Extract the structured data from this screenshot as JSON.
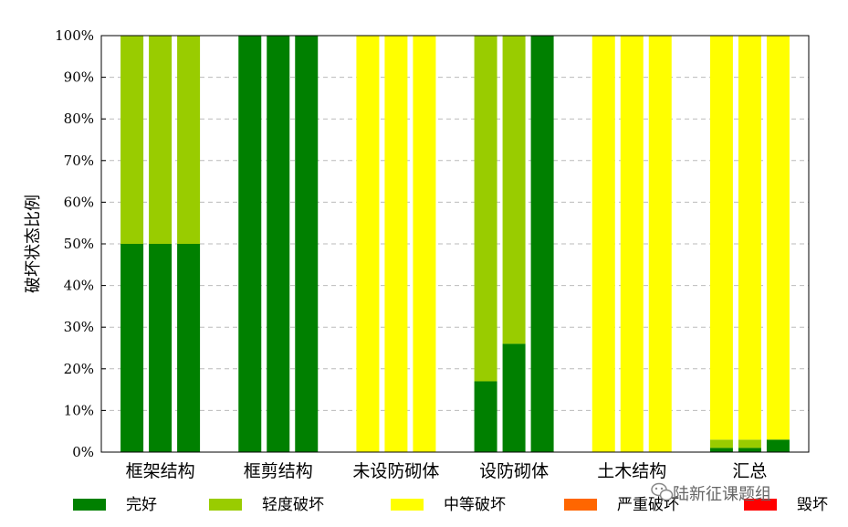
{
  "chart_data": {
    "type": "bar",
    "stacked": true,
    "ylabel": "破坏状态比例",
    "ylim": [
      0,
      100
    ],
    "yticks": [
      "0%",
      "10%",
      "20%",
      "30%",
      "40%",
      "50%",
      "60%",
      "70%",
      "80%",
      "90%",
      "100%"
    ],
    "grid": true,
    "legend_position": "bottom",
    "categories": [
      "框架结构",
      "框剪结构",
      "未设防砌体",
      "设防砌体",
      "土木结构",
      "汇总"
    ],
    "bars_per_category": 3,
    "series": [
      {
        "name": "完好",
        "color": "#008000",
        "values": [
          [
            50,
            50,
            50
          ],
          [
            100,
            100,
            100
          ],
          [
            0,
            0,
            0
          ],
          [
            17,
            26,
            100
          ],
          [
            0,
            0,
            0
          ],
          [
            1,
            1,
            3
          ]
        ]
      },
      {
        "name": "轻度破坏",
        "color": "#99cc00",
        "values": [
          [
            50,
            50,
            50
          ],
          [
            0,
            0,
            0
          ],
          [
            0,
            0,
            0
          ],
          [
            83,
            74,
            0
          ],
          [
            0,
            0,
            0
          ],
          [
            2,
            2,
            0
          ]
        ]
      },
      {
        "name": "中等破坏",
        "color": "#ffff00",
        "values": [
          [
            0,
            0,
            0
          ],
          [
            0,
            0,
            0
          ],
          [
            100,
            100,
            100
          ],
          [
            0,
            0,
            0
          ],
          [
            100,
            100,
            100
          ],
          [
            97,
            97,
            97
          ]
        ]
      },
      {
        "name": "严重破坏",
        "color": "#ff6600",
        "values": [
          [
            0,
            0,
            0
          ],
          [
            0,
            0,
            0
          ],
          [
            0,
            0,
            0
          ],
          [
            0,
            0,
            0
          ],
          [
            0,
            0,
            0
          ],
          [
            0,
            0,
            0
          ]
        ]
      },
      {
        "name": "毁坏",
        "color": "#ff0000",
        "values": [
          [
            0,
            0,
            0
          ],
          [
            0,
            0,
            0
          ],
          [
            0,
            0,
            0
          ],
          [
            0,
            0,
            0
          ],
          [
            0,
            0,
            0
          ],
          [
            0,
            0,
            0
          ]
        ]
      }
    ]
  },
  "watermark": {
    "text": "陆新征课题组",
    "icon": "wechat-icon"
  }
}
